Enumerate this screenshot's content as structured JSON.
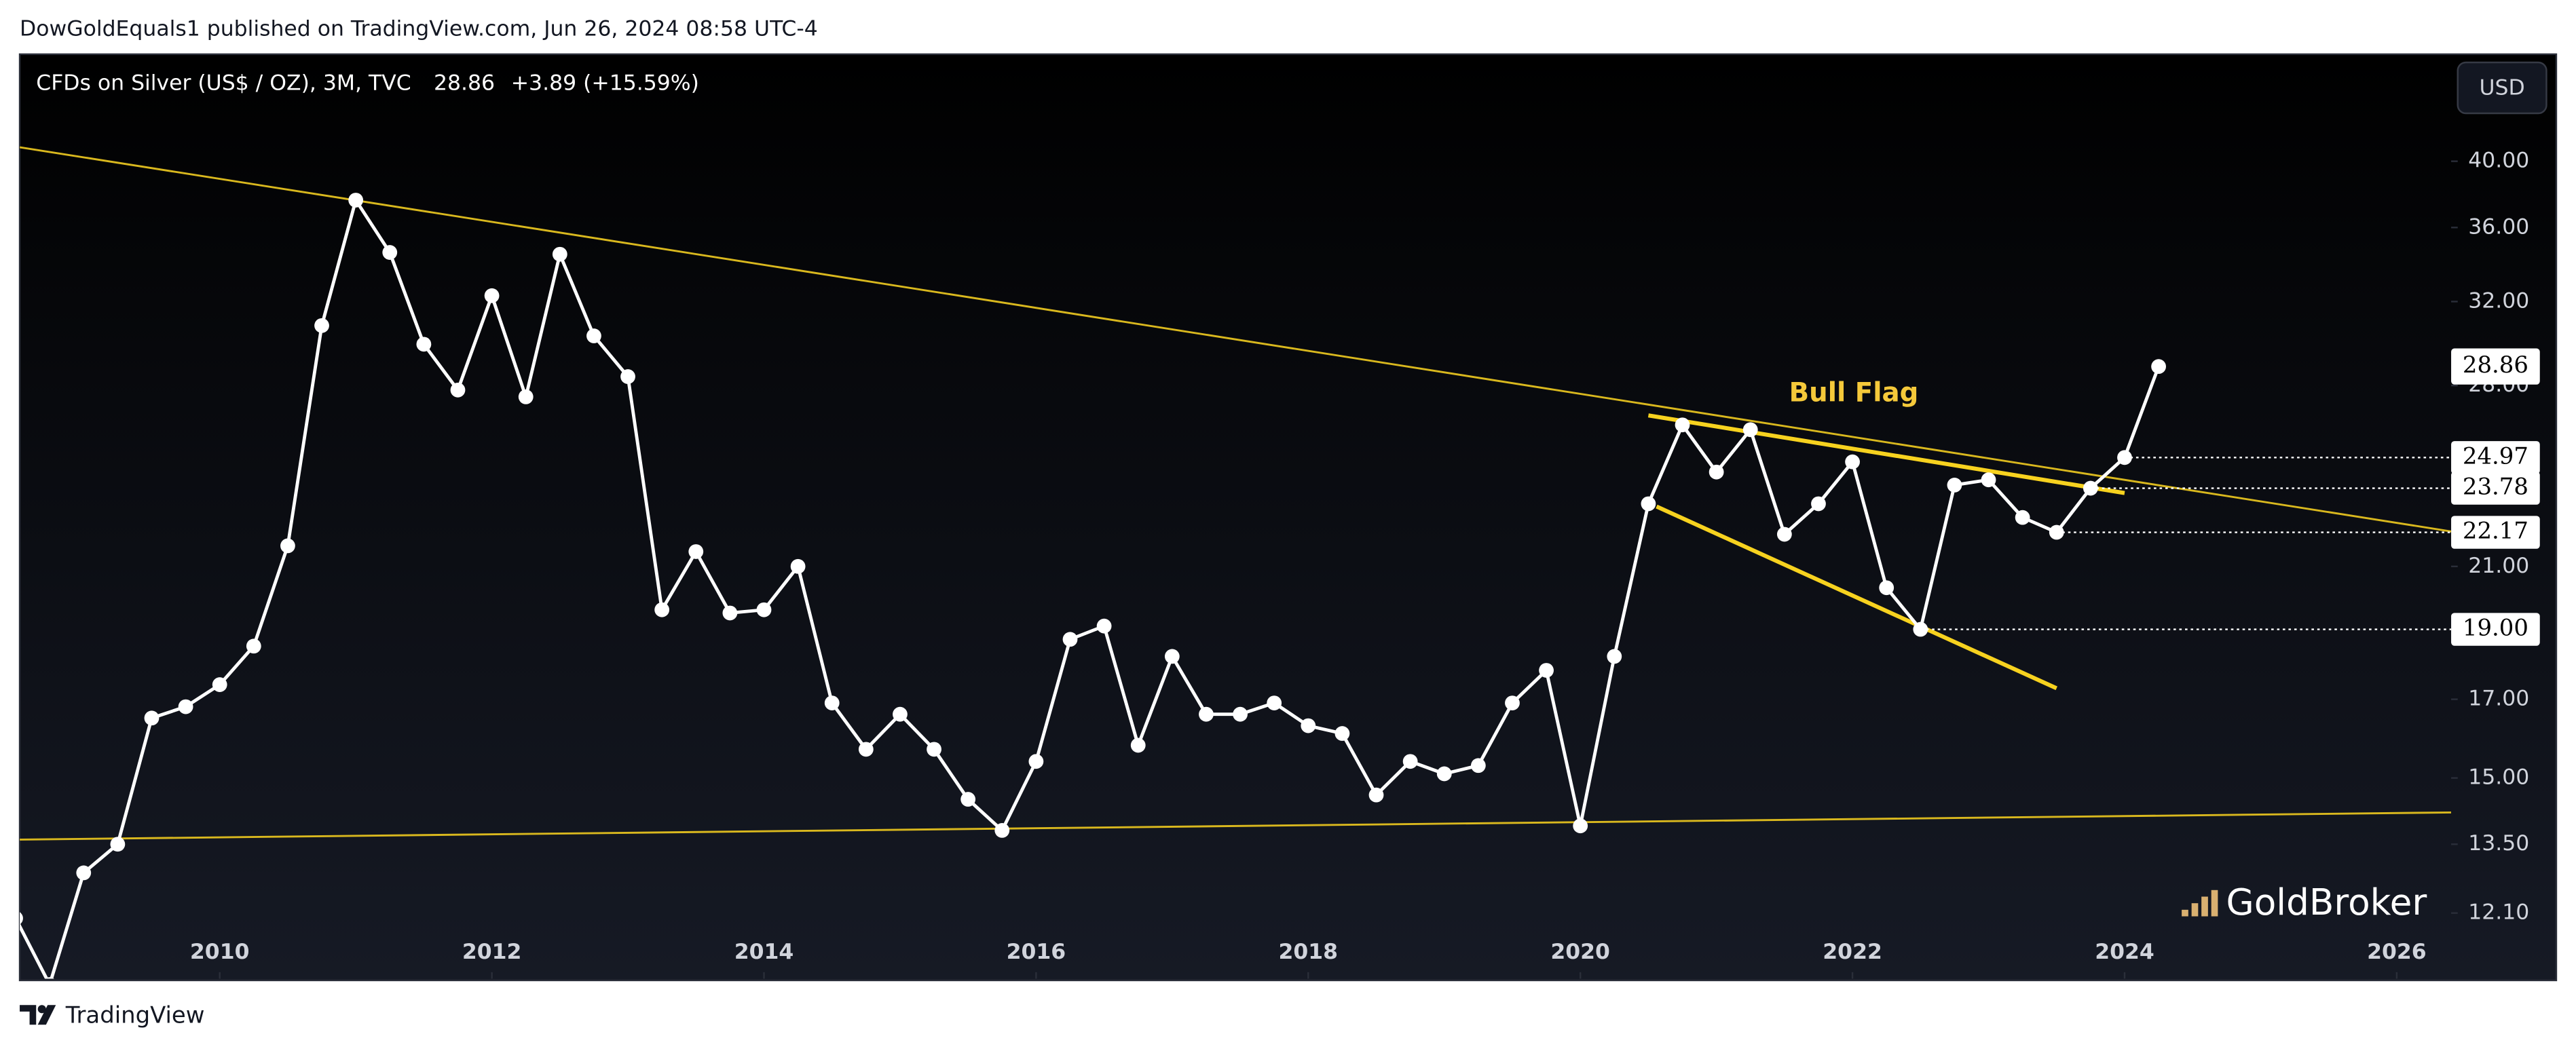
{
  "chart_data": {
    "type": "line",
    "header": "DowGoldEquals1 published on TradingView.com, Jun 26, 2024 08:58 UTC-4",
    "legend": {
      "symbol": "CFDs on Silver (US$ / OZ), 3M, TVC",
      "change": "+3.89 (+15.59%)"
    },
    "last_price": 28.86,
    "currency": "USD",
    "annotation": "Bull Flag",
    "watermark": "GoldBroker",
    "footer": "TradingView",
    "color": "#ffffff",
    "log_scale": true,
    "x": [
      2008.5,
      2008.75,
      2009.0,
      2009.25,
      2009.5,
      2009.75,
      2010.0,
      2010.25,
      2010.5,
      2010.75,
      2011.0,
      2011.25,
      2011.5,
      2011.75,
      2012.0,
      2012.25,
      2012.5,
      2012.75,
      2013.0,
      2013.25,
      2013.5,
      2013.75,
      2014.0,
      2014.25,
      2014.5,
      2014.75,
      2015.0,
      2015.25,
      2015.5,
      2015.75,
      2016.0,
      2016.25,
      2016.5,
      2016.75,
      2017.0,
      2017.25,
      2017.5,
      2017.75,
      2018.0,
      2018.25,
      2018.5,
      2018.75,
      2019.0,
      2019.25,
      2019.5,
      2019.75,
      2020.0,
      2020.25,
      2020.5,
      2020.75,
      2021.0,
      2021.25,
      2021.5,
      2021.75,
      2022.0,
      2022.25,
      2022.5,
      2022.75,
      2023.0,
      2023.25,
      2023.5,
      2023.75,
      2024.0,
      2024.25
    ],
    "values": [
      12.0,
      10.8,
      12.9,
      13.5,
      16.5,
      16.8,
      17.4,
      18.5,
      21.7,
      30.8,
      37.6,
      34.6,
      29.9,
      27.8,
      32.3,
      27.5,
      34.5,
      30.3,
      28.4,
      19.6,
      21.5,
      19.5,
      19.6,
      21.0,
      16.9,
      15.7,
      16.6,
      15.7,
      14.5,
      13.8,
      15.4,
      18.7,
      19.1,
      15.8,
      18.2,
      16.6,
      16.6,
      16.9,
      16.3,
      16.1,
      14.6,
      15.4,
      15.1,
      15.3,
      16.9,
      17.8,
      13.9,
      18.2,
      23.2,
      26.3,
      24.4,
      26.1,
      22.1,
      23.2,
      24.8,
      20.3,
      19.0,
      23.9,
      24.1,
      22.7,
      22.17,
      23.78,
      24.97,
      28.86
    ],
    "xlim": [
      2008.53,
      2026.4
    ],
    "xticks": [
      2010,
      2012,
      2014,
      2016,
      2018,
      2020,
      2022,
      2024,
      2026
    ],
    "ylim": [
      10.9,
      47.3
    ],
    "yticks": [
      {
        "value": 12.1,
        "label": "12.10"
      },
      {
        "value": 13.5,
        "label": "13.50"
      },
      {
        "value": 15,
        "label": "15.00"
      },
      {
        "value": 17,
        "label": "17.00"
      },
      {
        "value": 21,
        "label": "21.00"
      },
      {
        "value": 28,
        "label": "28.00"
      },
      {
        "value": 32,
        "label": "32.00"
      },
      {
        "value": 36,
        "label": "36.00"
      },
      {
        "value": 40,
        "label": "40.00"
      }
    ],
    "trendlines": [
      {
        "color": "#d9b81e",
        "x": [
          2008.53,
          2026.4
        ],
        "y": [
          40.9,
          22.2
        ]
      },
      {
        "color": "#d9b81e",
        "x": [
          2008.53,
          2026.4
        ],
        "y": [
          13.6,
          14.2
        ]
      },
      {
        "color": "#f7d21f",
        "x": [
          2020.5,
          2024.0
        ],
        "y": [
          26.7,
          23.6
        ]
      },
      {
        "color": "#f7d21f",
        "x": [
          2020.56,
          2023.5
        ],
        "y": [
          23.1,
          17.3
        ]
      }
    ],
    "levels": [
      {
        "x": 2024.0,
        "value": 24.97
      },
      {
        "x": 2023.75,
        "value": 23.78
      },
      {
        "x": 2023.5,
        "value": 22.17
      },
      {
        "x": 2022.5,
        "value": 19,
        "label": "19.00"
      }
    ]
  }
}
